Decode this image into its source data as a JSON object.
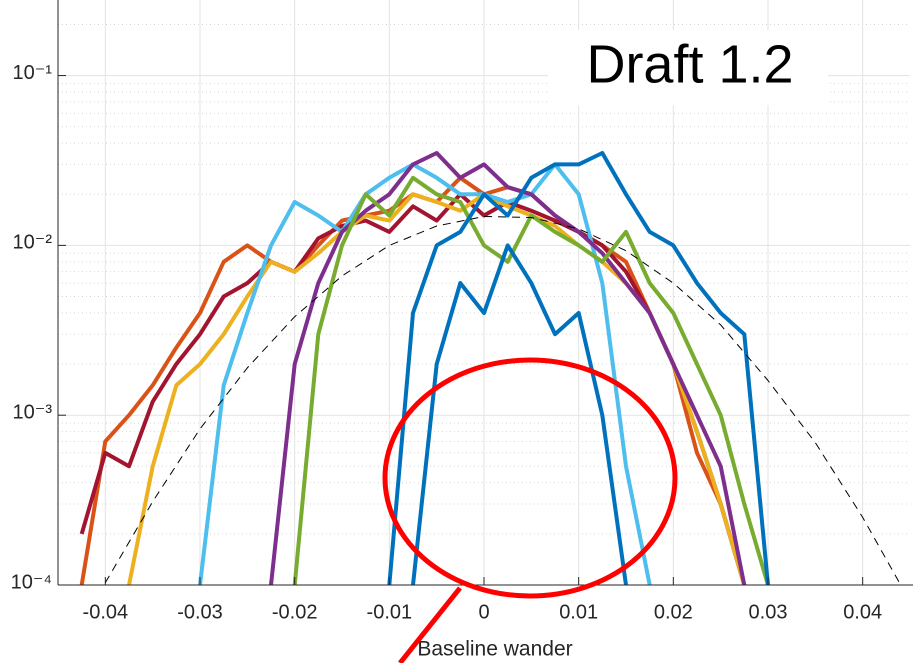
{
  "chart_data": {
    "type": "line",
    "annotation": "Draft 1.2",
    "xlabel": "Baseline wander",
    "log_y": true,
    "grid": true,
    "minor_grid": true,
    "xlim": [
      -0.045,
      0.045
    ],
    "ylim": [
      0.0001,
      0.25
    ],
    "xticks": [
      -0.04,
      -0.03,
      -0.02,
      -0.01,
      0,
      0.01,
      0.02,
      0.03,
      0.04
    ],
    "yticks": [
      {
        "value": 0.0001,
        "label": "10⁻⁴"
      },
      {
        "value": 0.001,
        "label": "10⁻³"
      },
      {
        "value": 0.01,
        "label": "10⁻²"
      },
      {
        "value": 0.1,
        "label": "10⁻¹"
      }
    ],
    "x": [
      -0.0425,
      -0.04,
      -0.0375,
      -0.035,
      -0.0325,
      -0.03,
      -0.0275,
      -0.025,
      -0.0225,
      -0.02,
      -0.0175,
      -0.015,
      -0.0125,
      -0.01,
      -0.0075,
      -0.005,
      -0.0025,
      0,
      0.0025,
      0.005,
      0.0075,
      0.01,
      0.0125,
      0.015,
      0.0175,
      0.02,
      0.0225,
      0.025,
      0.0275,
      0.03,
      0.0325
    ],
    "series": [
      {
        "color": "#D95319",
        "values": [
          0.0001,
          0.0007,
          0.001,
          0.0015,
          0.0025,
          0.004,
          0.008,
          0.01,
          0.008,
          0.007,
          0.01,
          0.014,
          0.015,
          0.016,
          0.02,
          0.018,
          0.025,
          0.02,
          0.022,
          0.02,
          0.015,
          0.012,
          0.01,
          0.008,
          0.004,
          0.002,
          0.0006,
          0.0003,
          0.0001,
          null,
          null
        ]
      },
      {
        "color": "#A2142F",
        "values": [
          0.0002,
          0.0006,
          0.0005,
          0.0012,
          0.002,
          0.003,
          0.005,
          0.006,
          0.008,
          0.007,
          0.011,
          0.013,
          0.014,
          0.012,
          0.017,
          0.014,
          0.02,
          0.015,
          0.018,
          0.016,
          0.014,
          0.012,
          0.01,
          0.007,
          0.004,
          0.002,
          0.0008,
          0.0003,
          0.0001,
          null,
          null
        ]
      },
      {
        "color": "#EDB120",
        "values": [
          null,
          null,
          0.0001,
          0.0005,
          0.0015,
          0.002,
          0.003,
          0.005,
          0.008,
          0.007,
          0.009,
          0.012,
          0.015,
          0.014,
          0.02,
          0.018,
          0.016,
          0.02,
          0.017,
          0.015,
          0.013,
          0.01,
          0.008,
          0.006,
          0.004,
          0.002,
          0.0008,
          0.0003,
          0.0001,
          null,
          null
        ]
      },
      {
        "color": "#4DBEEE",
        "values": [
          null,
          null,
          null,
          null,
          null,
          0.0001,
          0.0015,
          0.004,
          0.01,
          0.018,
          0.015,
          0.012,
          0.02,
          0.025,
          0.03,
          0.025,
          0.02,
          0.02,
          0.018,
          0.02,
          0.03,
          0.02,
          0.006,
          0.0005,
          0.0001,
          null,
          null,
          null,
          null,
          null,
          null
        ]
      },
      {
        "color": "#7E2F8E",
        "values": [
          null,
          null,
          null,
          null,
          null,
          null,
          null,
          null,
          0.0001,
          0.002,
          0.006,
          0.012,
          0.016,
          0.02,
          0.03,
          0.035,
          0.025,
          0.03,
          0.022,
          0.02,
          0.015,
          0.012,
          0.009,
          0.006,
          0.004,
          0.002,
          0.001,
          0.0005,
          0.0001,
          null,
          null
        ]
      },
      {
        "color": "#77AC30",
        "values": [
          null,
          null,
          null,
          null,
          null,
          null,
          null,
          null,
          null,
          0.0001,
          0.003,
          0.01,
          0.02,
          0.015,
          0.025,
          0.02,
          0.018,
          0.01,
          0.008,
          0.015,
          0.012,
          0.01,
          0.008,
          0.012,
          0.006,
          0.004,
          0.002,
          0.001,
          0.0003,
          0.0001,
          null
        ]
      },
      {
        "color": "#0072BD",
        "values": [
          null,
          null,
          null,
          null,
          null,
          null,
          null,
          null,
          null,
          null,
          null,
          null,
          null,
          0.0001,
          0.004,
          0.01,
          0.012,
          0.02,
          0.015,
          0.025,
          0.03,
          0.03,
          0.035,
          0.02,
          0.012,
          0.01,
          0.006,
          0.004,
          0.003,
          0.0001,
          null
        ]
      },
      {
        "color": "#0072BD",
        "values": [
          null,
          null,
          null,
          null,
          null,
          null,
          null,
          null,
          null,
          null,
          null,
          null,
          null,
          null,
          0.0001,
          0.002,
          0.006,
          0.004,
          0.01,
          0.006,
          0.003,
          0.004,
          0.001,
          0.0001,
          null,
          null,
          null,
          null,
          null,
          null,
          null
        ]
      },
      {
        "color": "#000000",
        "style": "dashed",
        "x": [
          -0.04,
          -0.035,
          -0.03,
          -0.025,
          -0.02,
          -0.015,
          -0.01,
          -0.005,
          0,
          0.005,
          0.01,
          0.015,
          0.02,
          0.025,
          0.03,
          0.035,
          0.04,
          0.045
        ],
        "values": [
          0.000103,
          0.00031,
          0.00083,
          0.0019,
          0.0038,
          0.0066,
          0.01,
          0.013,
          0.0148,
          0.0146,
          0.0125,
          0.0093,
          0.006,
          0.0034,
          0.0016,
          0.00069,
          0.00025,
          8e-05
        ]
      }
    ]
  }
}
